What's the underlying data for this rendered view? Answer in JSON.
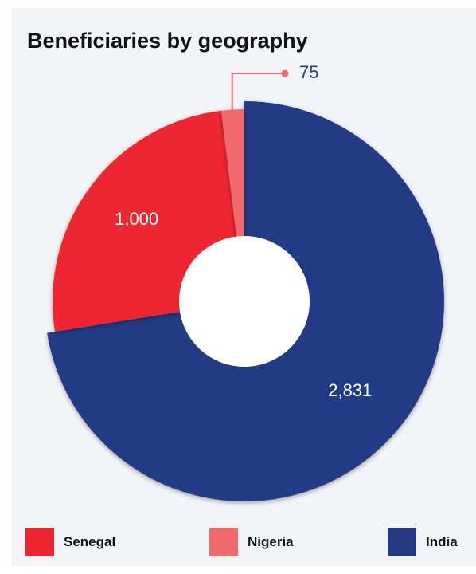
{
  "chart_data": {
    "type": "pie",
    "title": "Beneficiaries by geography",
    "slices": [
      {
        "label": "India",
        "value": 2831,
        "display": "2,831",
        "color": "#243b84"
      },
      {
        "label": "Senegal",
        "value": 1000,
        "display": "1,000",
        "color": "#ee2631"
      },
      {
        "label": "Nigeria",
        "value": 75,
        "display": "75",
        "color": "#f0696d"
      }
    ],
    "legend_placement": "bottom",
    "legend": [
      {
        "label": "Senegal",
        "color": "#ee2631"
      },
      {
        "label": "Nigeria",
        "color": "#f0696d"
      },
      {
        "label": "India",
        "color": "#243b84"
      }
    ]
  }
}
